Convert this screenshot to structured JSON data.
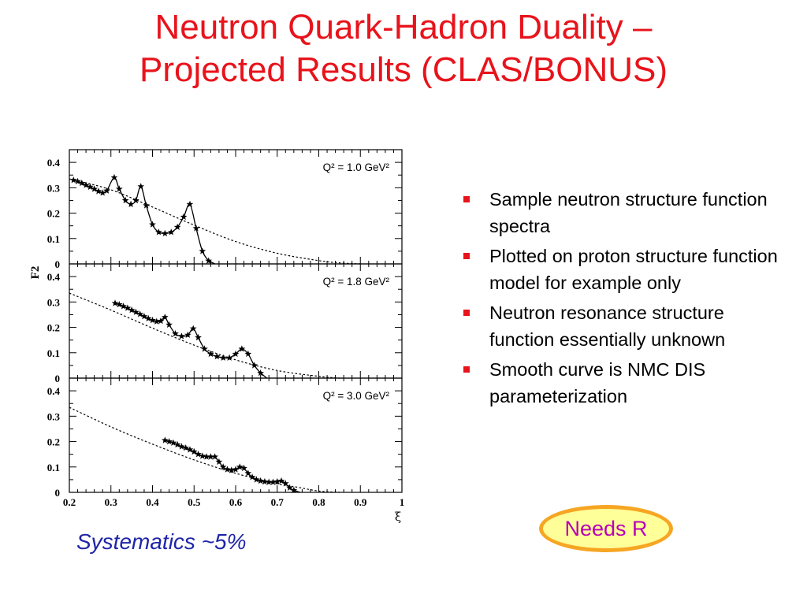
{
  "title": {
    "line1": "Neutron Quark-Hadron Duality –",
    "line2": "Projected Results (CLAS/BONUS)"
  },
  "bullets": [
    "Sample neutron structure function spectra",
    "Plotted on proton structure function model for example only",
    "Neutron resonance structure function essentially unknown",
    "Smooth curve is NMC DIS parameterization"
  ],
  "systematics": "Systematics ~5%",
  "needs_r": "Needs R",
  "colors": {
    "title": "#e8131b",
    "bullet": "#e8131b",
    "systematics": "#1f25a8",
    "badge_text": "#b800b8",
    "badge_fill": "#ffff99",
    "badge_border": "#f6a623"
  },
  "chart_data": {
    "type": "scatter",
    "xlabel": "ξ",
    "ylabel": "F2",
    "xlim": [
      0.2,
      1.0
    ],
    "ylim": [
      0,
      0.45
    ],
    "xticks": [
      "0.2",
      "0.3",
      "0.4",
      "0.5",
      "0.6",
      "0.7",
      "0.8",
      "0.9",
      "1"
    ],
    "yticks": [
      "0",
      "0.1",
      "0.2",
      "0.3",
      "0.4"
    ],
    "panels": [
      {
        "label": "Q² = 1.0 GeV²",
        "dis": [
          [
            0.2,
            0.335
          ],
          [
            0.3,
            0.292
          ],
          [
            0.4,
            0.224
          ],
          [
            0.5,
            0.153
          ],
          [
            0.6,
            0.088
          ],
          [
            0.7,
            0.042
          ],
          [
            0.8,
            0.013
          ],
          [
            0.85,
            0.004
          ],
          [
            0.9,
            0.0
          ]
        ],
        "stars": [
          [
            0.21,
            0.33
          ],
          [
            0.22,
            0.325
          ],
          [
            0.23,
            0.318
          ],
          [
            0.24,
            0.31
          ],
          [
            0.25,
            0.303
          ],
          [
            0.26,
            0.295
          ],
          [
            0.27,
            0.286
          ],
          [
            0.28,
            0.28
          ],
          [
            0.29,
            0.288
          ],
          [
            0.308,
            0.34
          ],
          [
            0.32,
            0.295
          ],
          [
            0.335,
            0.25
          ],
          [
            0.348,
            0.235
          ],
          [
            0.36,
            0.25
          ],
          [
            0.372,
            0.305
          ],
          [
            0.385,
            0.23
          ],
          [
            0.4,
            0.155
          ],
          [
            0.415,
            0.125
          ],
          [
            0.43,
            0.12
          ],
          [
            0.445,
            0.125
          ],
          [
            0.46,
            0.145
          ],
          [
            0.475,
            0.185
          ],
          [
            0.49,
            0.235
          ],
          [
            0.505,
            0.14
          ],
          [
            0.52,
            0.05
          ],
          [
            0.535,
            0.012
          ]
        ]
      },
      {
        "label": "Q² = 1.8 GeV²",
        "dis": [
          [
            0.2,
            0.335
          ],
          [
            0.3,
            0.268
          ],
          [
            0.4,
            0.197
          ],
          [
            0.5,
            0.13
          ],
          [
            0.6,
            0.072
          ],
          [
            0.7,
            0.03
          ],
          [
            0.8,
            0.007
          ],
          [
            0.85,
            0.0
          ]
        ],
        "stars": [
          [
            0.31,
            0.295
          ],
          [
            0.32,
            0.29
          ],
          [
            0.33,
            0.283
          ],
          [
            0.34,
            0.276
          ],
          [
            0.35,
            0.268
          ],
          [
            0.36,
            0.26
          ],
          [
            0.37,
            0.252
          ],
          [
            0.38,
            0.243
          ],
          [
            0.39,
            0.235
          ],
          [
            0.4,
            0.228
          ],
          [
            0.41,
            0.223
          ],
          [
            0.42,
            0.225
          ],
          [
            0.43,
            0.24
          ],
          [
            0.44,
            0.21
          ],
          [
            0.455,
            0.175
          ],
          [
            0.47,
            0.165
          ],
          [
            0.485,
            0.17
          ],
          [
            0.498,
            0.195
          ],
          [
            0.51,
            0.16
          ],
          [
            0.525,
            0.115
          ],
          [
            0.54,
            0.095
          ],
          [
            0.555,
            0.085
          ],
          [
            0.57,
            0.08
          ],
          [
            0.585,
            0.08
          ],
          [
            0.6,
            0.095
          ],
          [
            0.615,
            0.115
          ],
          [
            0.63,
            0.095
          ],
          [
            0.645,
            0.05
          ],
          [
            0.66,
            0.02
          ]
        ]
      },
      {
        "label": "Q² = 3.0 GeV²",
        "dis": [
          [
            0.2,
            0.335
          ],
          [
            0.3,
            0.258
          ],
          [
            0.4,
            0.19
          ],
          [
            0.5,
            0.128
          ],
          [
            0.6,
            0.075
          ],
          [
            0.7,
            0.034
          ],
          [
            0.75,
            0.02
          ],
          [
            0.8,
            0.005
          ],
          [
            0.85,
            0.0
          ]
        ],
        "stars": [
          [
            0.43,
            0.205
          ],
          [
            0.44,
            0.2
          ],
          [
            0.45,
            0.195
          ],
          [
            0.46,
            0.188
          ],
          [
            0.47,
            0.18
          ],
          [
            0.48,
            0.175
          ],
          [
            0.49,
            0.168
          ],
          [
            0.5,
            0.16
          ],
          [
            0.51,
            0.15
          ],
          [
            0.52,
            0.143
          ],
          [
            0.53,
            0.14
          ],
          [
            0.54,
            0.14
          ],
          [
            0.55,
            0.14
          ],
          [
            0.56,
            0.12
          ],
          [
            0.57,
            0.1
          ],
          [
            0.58,
            0.09
          ],
          [
            0.59,
            0.087
          ],
          [
            0.6,
            0.09
          ],
          [
            0.61,
            0.1
          ],
          [
            0.62,
            0.095
          ],
          [
            0.63,
            0.075
          ],
          [
            0.64,
            0.06
          ],
          [
            0.65,
            0.05
          ],
          [
            0.66,
            0.045
          ],
          [
            0.67,
            0.042
          ],
          [
            0.68,
            0.04
          ],
          [
            0.69,
            0.04
          ],
          [
            0.7,
            0.042
          ],
          [
            0.71,
            0.045
          ],
          [
            0.72,
            0.035
          ],
          [
            0.73,
            0.018
          ],
          [
            0.74,
            0.008
          ]
        ]
      }
    ]
  }
}
